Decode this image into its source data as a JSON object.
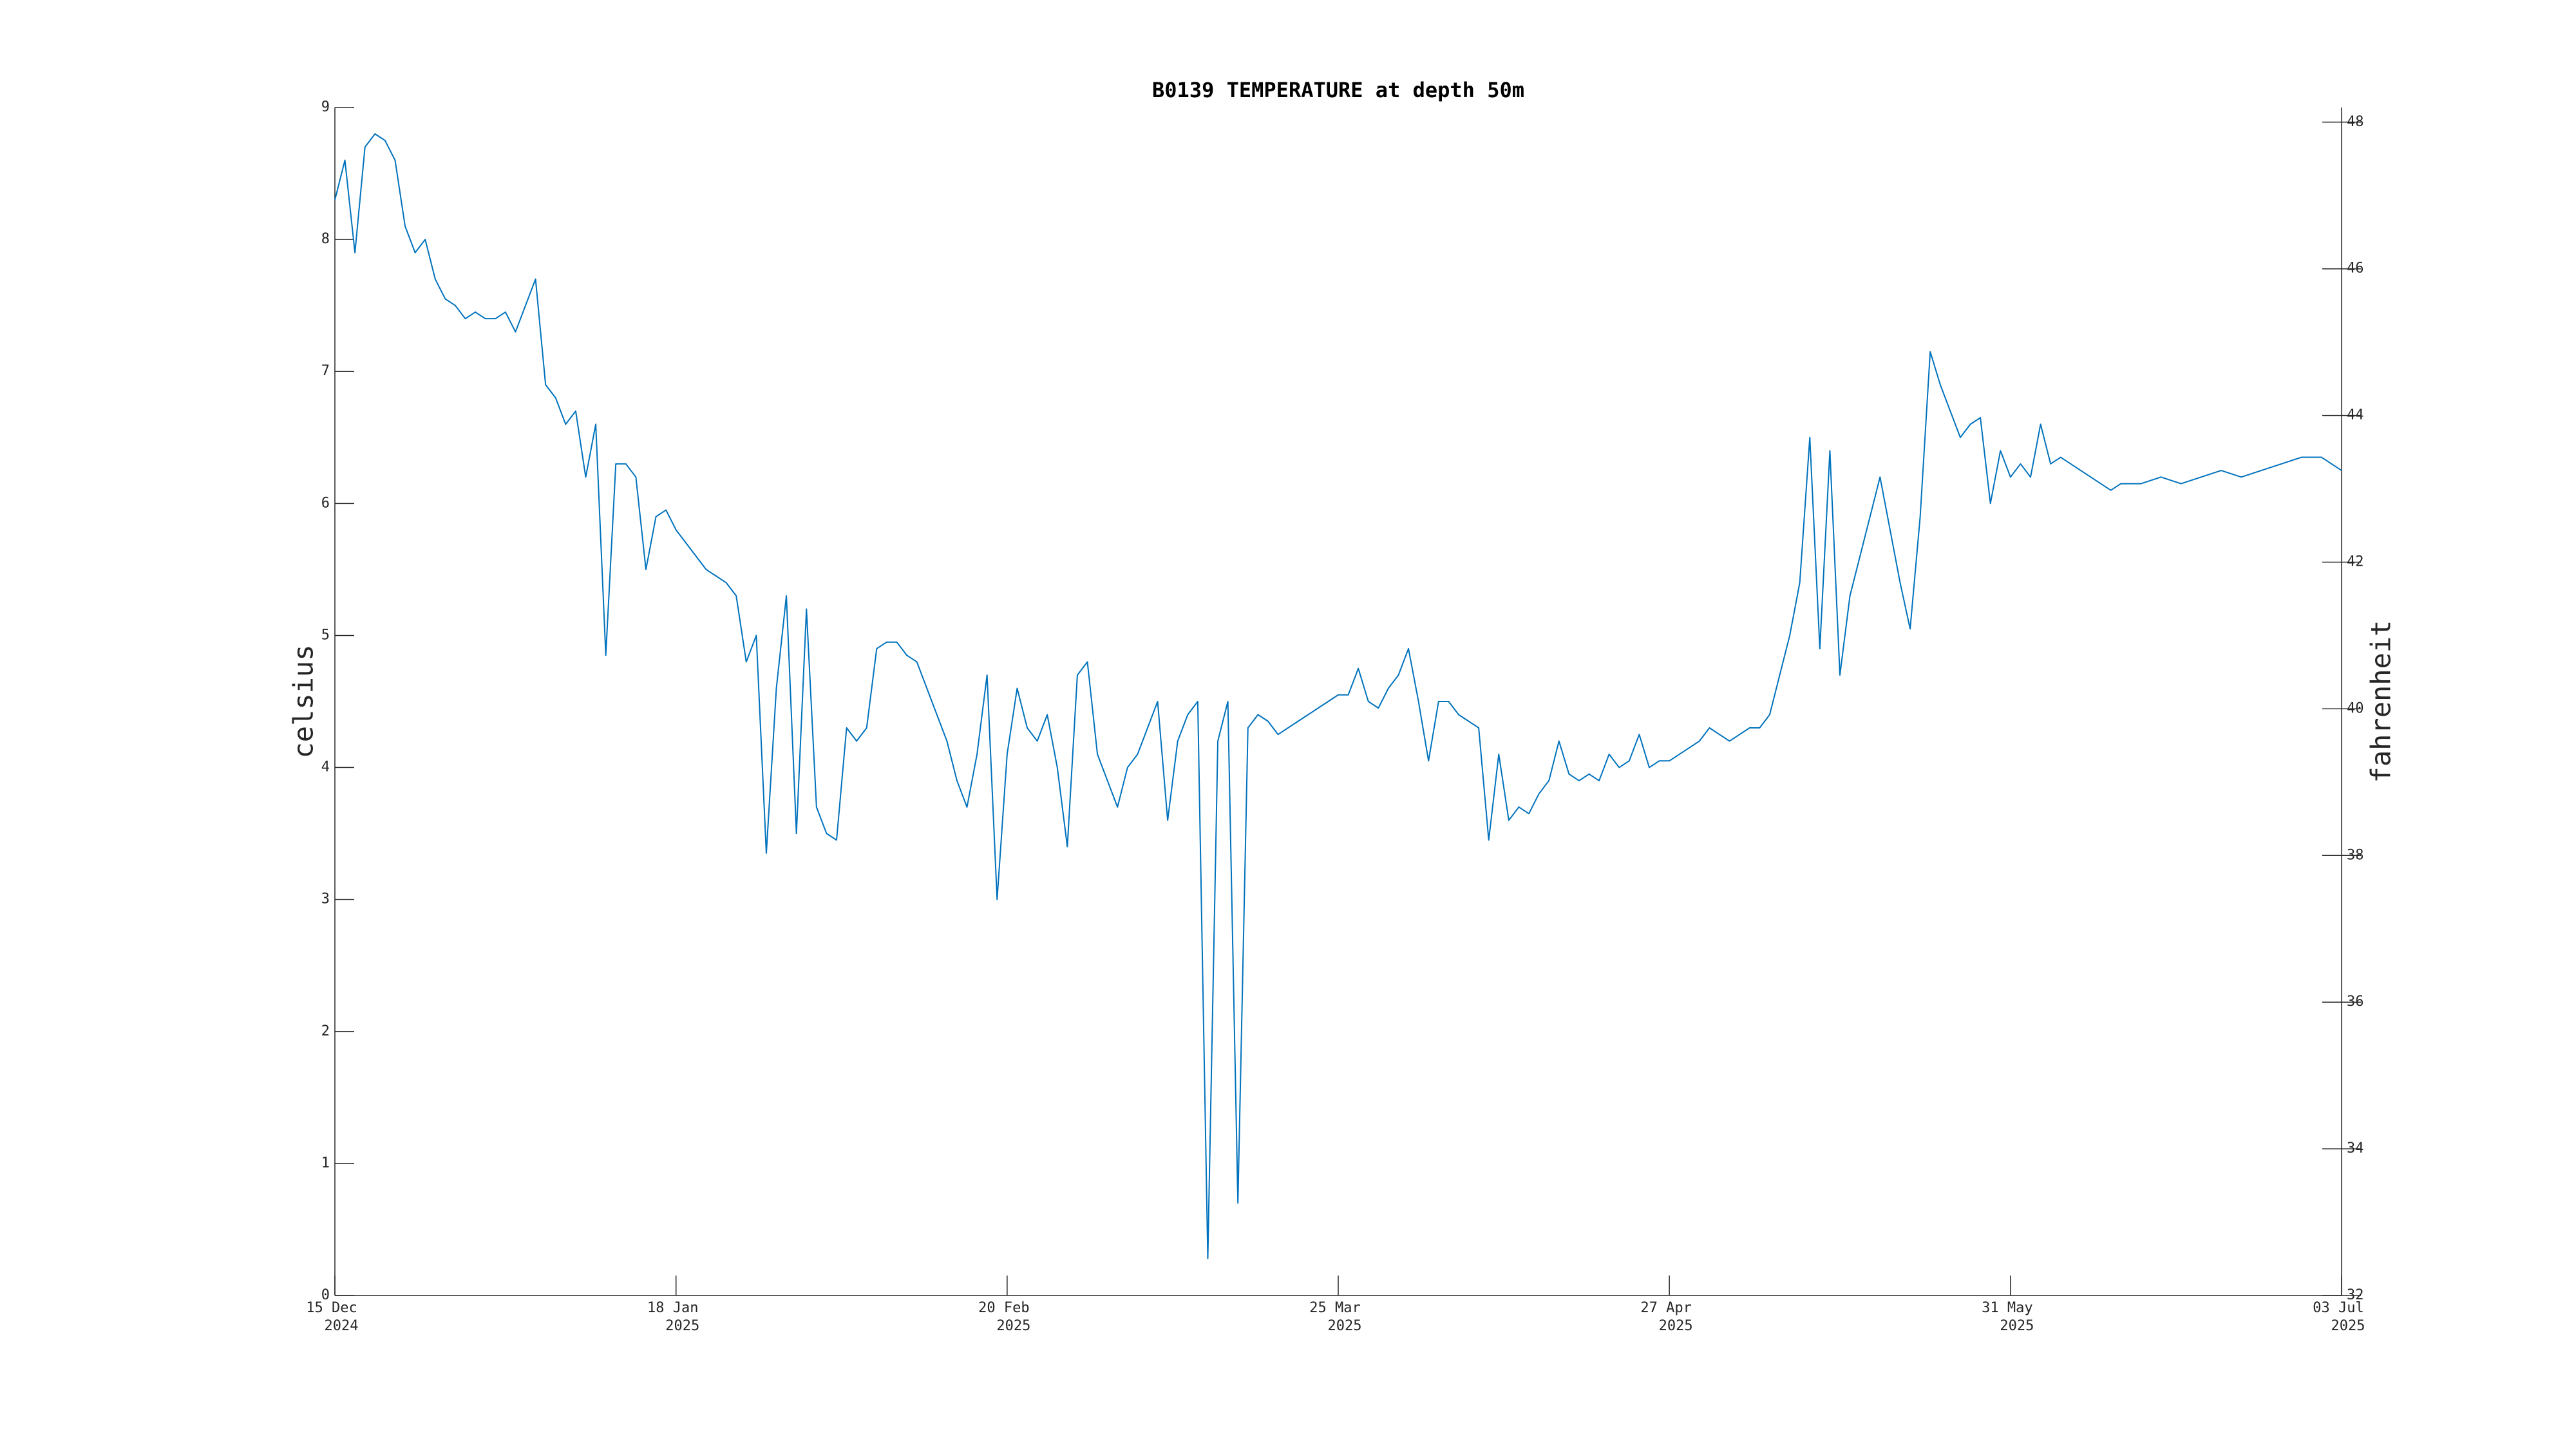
{
  "chart_data": {
    "type": "line",
    "title": "B0139 TEMPERATURE at depth 50m",
    "ylabel": "celsius",
    "y2label": "fahrenheit",
    "xlim": [
      "2024-12-15",
      "2025-07-03"
    ],
    "xticks": [
      {
        "value": "2024-12-15",
        "label": [
          "15 Dec",
          "2024"
        ]
      },
      {
        "value": "2025-01-18",
        "label": [
          "18 Jan",
          "2025"
        ]
      },
      {
        "value": "2025-02-20",
        "label": [
          "20 Feb",
          "2025"
        ]
      },
      {
        "value": "2025-03-25",
        "label": [
          "25 Mar",
          "2025"
        ]
      },
      {
        "value": "2025-04-27",
        "label": [
          "27 Apr",
          "2025"
        ]
      },
      {
        "value": "2025-05-31",
        "label": [
          "31 May",
          "2025"
        ]
      },
      {
        "value": "2025-07-03",
        "label": [
          "03 Jul",
          "2025"
        ]
      }
    ],
    "ylim": [
      0,
      9
    ],
    "yticks": [
      0,
      1,
      2,
      3,
      4,
      5,
      6,
      7,
      8,
      9
    ],
    "y2lim": [
      32,
      48.2
    ],
    "y2ticks": [
      32,
      34,
      36,
      38,
      40,
      42,
      44,
      46,
      48
    ],
    "x": [
      "2024-12-15",
      "2024-12-16",
      "2024-12-17",
      "2024-12-18",
      "2024-12-19",
      "2024-12-20",
      "2024-12-21",
      "2024-12-22",
      "2024-12-23",
      "2024-12-24",
      "2024-12-25",
      "2024-12-26",
      "2024-12-27",
      "2024-12-28",
      "2024-12-29",
      "2024-12-30",
      "2024-12-31",
      "2025-01-01",
      "2025-01-02",
      "2025-01-03",
      "2025-01-04",
      "2025-01-05",
      "2025-01-06",
      "2025-01-07",
      "2025-01-08",
      "2025-01-09",
      "2025-01-10",
      "2025-01-11",
      "2025-01-12",
      "2025-01-13",
      "2025-01-14",
      "2025-01-15",
      "2025-01-16",
      "2025-01-17",
      "2025-01-18",
      "2025-01-19",
      "2025-01-20",
      "2025-01-21",
      "2025-01-22",
      "2025-01-23",
      "2025-01-24",
      "2025-01-25",
      "2025-01-26",
      "2025-01-27",
      "2025-01-28",
      "2025-01-29",
      "2025-01-30",
      "2025-01-31",
      "2025-02-01",
      "2025-02-02",
      "2025-02-03",
      "2025-02-04",
      "2025-02-05",
      "2025-02-06",
      "2025-02-07",
      "2025-02-08",
      "2025-02-09",
      "2025-02-10",
      "2025-02-11",
      "2025-02-12",
      "2025-02-13",
      "2025-02-14",
      "2025-02-15",
      "2025-02-16",
      "2025-02-17",
      "2025-02-18",
      "2025-02-19",
      "2025-02-20",
      "2025-02-21",
      "2025-02-22",
      "2025-02-23",
      "2025-02-24",
      "2025-02-25",
      "2025-02-26",
      "2025-02-27",
      "2025-02-28",
      "2025-03-01",
      "2025-03-02",
      "2025-03-03",
      "2025-03-04",
      "2025-03-05",
      "2025-03-06",
      "2025-03-07",
      "2025-03-08",
      "2025-03-09",
      "2025-03-10",
      "2025-03-11",
      "2025-03-12",
      "2025-03-13",
      "2025-03-14",
      "2025-03-15",
      "2025-03-16",
      "2025-03-17",
      "2025-03-18",
      "2025-03-19",
      "2025-03-20",
      "2025-03-21",
      "2025-03-22",
      "2025-03-23",
      "2025-03-24",
      "2025-03-25",
      "2025-03-26",
      "2025-03-27",
      "2025-03-28",
      "2025-03-29",
      "2025-03-30",
      "2025-03-31",
      "2025-04-01",
      "2025-04-02",
      "2025-04-03",
      "2025-04-04",
      "2025-04-05",
      "2025-04-06",
      "2025-04-07",
      "2025-04-08",
      "2025-04-09",
      "2025-04-10",
      "2025-04-11",
      "2025-04-12",
      "2025-04-13",
      "2025-04-14",
      "2025-04-15",
      "2025-04-16",
      "2025-04-17",
      "2025-04-18",
      "2025-04-19",
      "2025-04-20",
      "2025-04-21",
      "2025-04-22",
      "2025-04-23",
      "2025-04-24",
      "2025-04-25",
      "2025-04-26",
      "2025-04-27",
      "2025-04-28",
      "2025-04-29",
      "2025-04-30",
      "2025-05-01",
      "2025-05-02",
      "2025-05-03",
      "2025-05-04",
      "2025-05-05",
      "2025-05-06",
      "2025-05-07",
      "2025-05-08",
      "2025-05-09",
      "2025-05-10",
      "2025-05-11",
      "2025-05-12",
      "2025-05-13",
      "2025-05-14",
      "2025-05-15",
      "2025-05-16",
      "2025-05-17",
      "2025-05-18",
      "2025-05-19",
      "2025-05-20",
      "2025-05-21",
      "2025-05-22",
      "2025-05-23",
      "2025-05-24",
      "2025-05-25",
      "2025-05-26",
      "2025-05-27",
      "2025-05-28",
      "2025-05-29",
      "2025-05-30",
      "2025-05-31",
      "2025-06-01",
      "2025-06-02",
      "2025-06-03",
      "2025-06-04",
      "2025-06-05",
      "2025-06-06",
      "2025-06-07",
      "2025-06-08",
      "2025-06-09",
      "2025-06-10",
      "2025-06-11",
      "2025-06-13",
      "2025-06-15",
      "2025-06-17",
      "2025-06-19",
      "2025-06-21",
      "2025-06-23",
      "2025-06-25",
      "2025-06-27",
      "2025-06-29",
      "2025-07-01",
      "2025-07-03"
    ],
    "series": [
      {
        "color": "#0072bd",
        "values": [
          8.3,
          8.6,
          7.9,
          8.7,
          8.8,
          8.75,
          8.6,
          8.1,
          7.9,
          8.0,
          7.7,
          7.55,
          7.5,
          7.4,
          7.45,
          7.4,
          7.4,
          7.45,
          7.3,
          7.5,
          7.7,
          6.9,
          6.8,
          6.6,
          6.7,
          6.2,
          6.6,
          4.85,
          6.3,
          6.3,
          6.2,
          5.5,
          5.9,
          5.95,
          5.8,
          5.7,
          5.6,
          5.5,
          5.45,
          5.4,
          5.3,
          4.8,
          5.0,
          3.35,
          4.6,
          5.3,
          3.5,
          5.2,
          3.7,
          3.5,
          3.45,
          4.3,
          4.2,
          4.3,
          4.9,
          4.95,
          4.95,
          4.85,
          4.8,
          4.6,
          4.4,
          4.2,
          3.9,
          3.7,
          4.1,
          4.7,
          3.0,
          4.1,
          4.6,
          4.3,
          4.2,
          4.4,
          4.0,
          3.4,
          4.7,
          4.8,
          4.1,
          3.9,
          3.7,
          4.0,
          4.1,
          4.3,
          4.5,
          3.6,
          4.2,
          4.4,
          4.5,
          0.28,
          4.2,
          4.5,
          0.7,
          4.3,
          4.4,
          4.35,
          4.25,
          4.3,
          4.35,
          4.4,
          4.45,
          4.5,
          4.55,
          4.55,
          4.75,
          4.5,
          4.45,
          4.6,
          4.7,
          4.9,
          4.5,
          4.05,
          4.5,
          4.5,
          4.4,
          4.35,
          4.3,
          3.45,
          4.1,
          3.6,
          3.7,
          3.65,
          3.8,
          3.9,
          4.2,
          3.95,
          3.9,
          3.95,
          3.9,
          4.1,
          4.0,
          4.05,
          4.25,
          4.0,
          4.05,
          4.05,
          4.1,
          4.15,
          4.2,
          4.3,
          4.25,
          4.2,
          4.25,
          4.3,
          4.3,
          4.4,
          4.7,
          5.0,
          5.4,
          6.5,
          4.9,
          6.4,
          4.7,
          5.3,
          5.6,
          5.9,
          6.2,
          5.8,
          5.4,
          5.05,
          5.9,
          7.15,
          6.9,
          6.7,
          6.5,
          6.6,
          6.65,
          6.0,
          6.4,
          6.2,
          6.3,
          6.2,
          6.6,
          6.3,
          6.35,
          6.3,
          6.25,
          6.2,
          6.15,
          6.1,
          6.15,
          6.15,
          6.2,
          6.15,
          6.2,
          6.25,
          6.2,
          6.25,
          6.3,
          6.35,
          6.35,
          6.25
        ]
      }
    ]
  }
}
